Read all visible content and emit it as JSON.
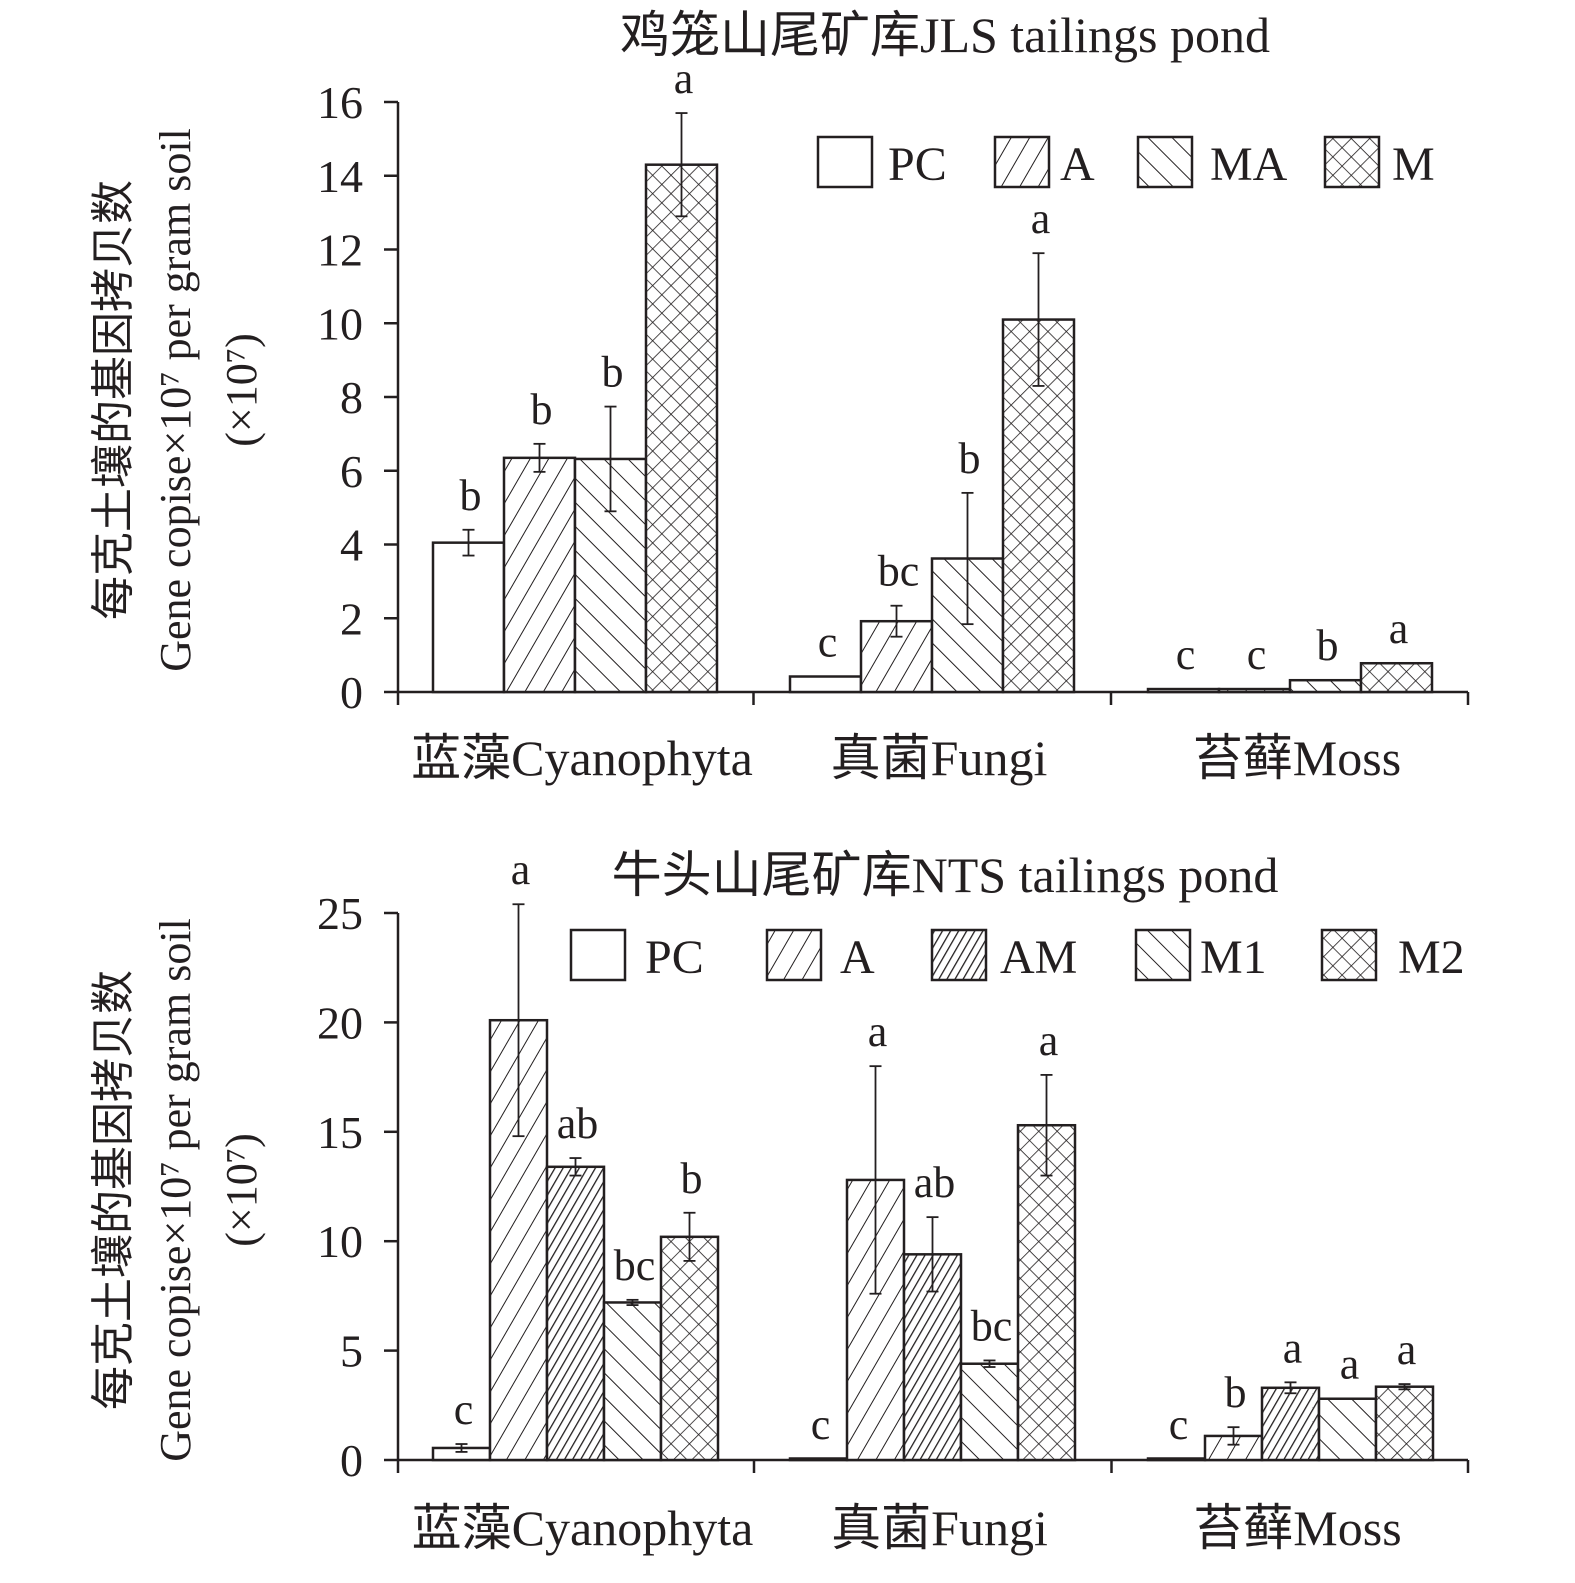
{
  "chart_data": [
    {
      "type": "bar",
      "title": "鸡笼山尾矿库JLS tailings pond",
      "ylabel_cn": "每克土壤的基因拷贝数",
      "ylabel_en": "Gene copise×10⁷ per gram soil",
      "ylabel_unit": "(×10⁷)",
      "ylim": [
        0,
        16
      ],
      "yticks": [
        "0",
        "2",
        "4",
        "6",
        "8",
        "10",
        "12",
        "14",
        "16"
      ],
      "categories": [
        "蓝藻Cyanophyta",
        "真菌Fungi",
        "苔藓Moss"
      ],
      "series": [
        {
          "name": "PC",
          "pattern": "empty",
          "values": [
            4.05,
            0.42,
            0.08
          ],
          "errors": [
            0.35,
            0,
            0
          ],
          "labels": [
            "b",
            "c",
            "c"
          ]
        },
        {
          "name": "A",
          "pattern": "fwd",
          "values": [
            6.35,
            1.92,
            0.08
          ],
          "errors": [
            0.38,
            0.42,
            0
          ],
          "labels": [
            "b",
            "bc",
            "c"
          ]
        },
        {
          "name": "MA",
          "pattern": "back",
          "values": [
            6.32,
            3.62,
            0.32
          ],
          "errors": [
            1.42,
            1.78,
            0
          ],
          "labels": [
            "b",
            "b",
            "b"
          ]
        },
        {
          "name": "M",
          "pattern": "cross",
          "values": [
            14.3,
            10.1,
            0.78
          ],
          "errors": [
            1.4,
            1.8,
            0
          ],
          "labels": [
            "a",
            "a",
            "a"
          ]
        }
      ]
    },
    {
      "type": "bar",
      "title": "牛头山尾矿库NTS tailings pond",
      "ylabel_cn": "每克土壤的基因拷贝数",
      "ylabel_en": "Gene copise×10⁷ per gram soil",
      "ylabel_unit": "(×10⁷)",
      "ylim": [
        0,
        25
      ],
      "yticks": [
        "0",
        "5",
        "10",
        "15",
        "20",
        "25"
      ],
      "categories": [
        "蓝藻Cyanophyta",
        "真菌Fungi",
        "苔藓Moss"
      ],
      "series": [
        {
          "name": "PC",
          "pattern": "empty",
          "values": [
            0.55,
            0.05,
            0.05
          ],
          "errors": [
            0.18,
            0,
            0
          ],
          "labels": [
            "c",
            "c",
            "c"
          ]
        },
        {
          "name": "A",
          "pattern": "fwd",
          "values": [
            20.1,
            12.8,
            1.1
          ],
          "errors": [
            5.3,
            5.2,
            0.4
          ],
          "labels": [
            "a",
            "a",
            "b"
          ]
        },
        {
          "name": "AM",
          "pattern": "dense",
          "values": [
            13.4,
            9.4,
            3.3
          ],
          "errors": [
            0.4,
            1.7,
            0.25
          ],
          "labels": [
            "ab",
            "ab",
            "a"
          ]
        },
        {
          "name": "M1",
          "pattern": "back",
          "values": [
            7.2,
            4.4,
            2.8
          ],
          "errors": [
            0.12,
            0.15,
            0
          ],
          "labels": [
            "bc",
            "bc",
            "a"
          ]
        },
        {
          "name": "M2",
          "pattern": "cross",
          "values": [
            10.2,
            15.3,
            3.35
          ],
          "errors": [
            1.1,
            2.3,
            0.12
          ],
          "labels": [
            "b",
            "a",
            "a"
          ]
        }
      ]
    }
  ]
}
